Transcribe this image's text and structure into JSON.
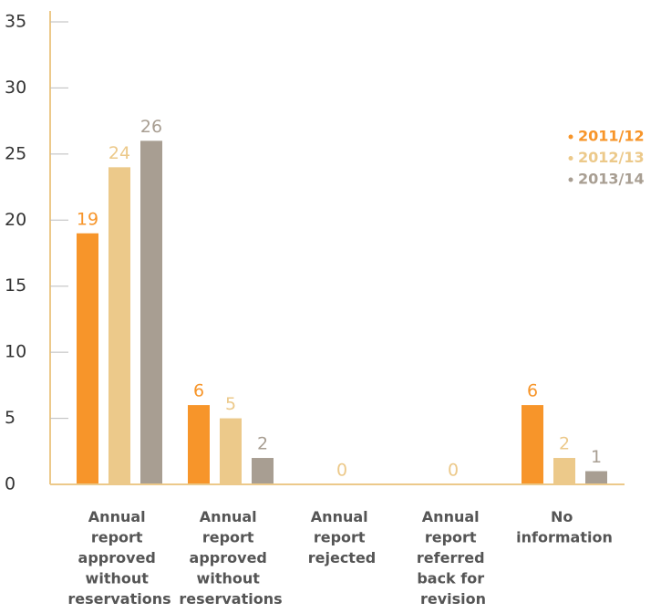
{
  "chart_data": {
    "type": "bar",
    "categories": [
      "Annual report approved without reservations",
      "Annual report approved without reservations",
      "Annual report rejected",
      "Annual report referred back for revision",
      "No information"
    ],
    "series": [
      {
        "name": "2011/12",
        "color": "#f7952a",
        "values": [
          19,
          6,
          0,
          0,
          6
        ]
      },
      {
        "name": "2012/13",
        "color": "#ecc98a",
        "values": [
          24,
          5,
          0,
          0,
          2
        ]
      },
      {
        "name": "2013/14",
        "color": "#a89e92",
        "values": [
          26,
          2,
          0,
          0,
          1
        ]
      }
    ],
    "ylim": [
      0,
      35
    ],
    "yticks": [
      0,
      5,
      10,
      15,
      20,
      25,
      30,
      35
    ],
    "legend": "right"
  }
}
